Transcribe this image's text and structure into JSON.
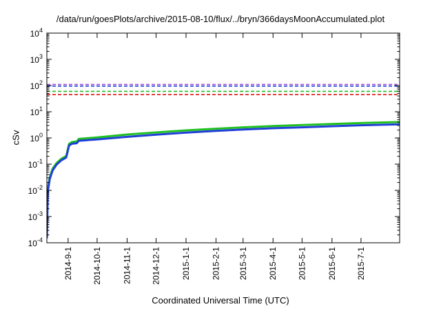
{
  "chart_data": {
    "type": "line",
    "title": "/data/run/goesPlots/archive/2015-08-10/flux/../bryn/366daysMoonAccumulated.plot",
    "xlabel": "Coordinated Universal Time (UTC)",
    "ylabel": "cSv",
    "y_scale": "log",
    "ylim": [
      0.0001,
      10000
    ],
    "xlim": [
      "2014-08-10",
      "2015-08-10"
    ],
    "grid": false,
    "y_ticks": [
      {
        "base": "10",
        "exp": "-4"
      },
      {
        "base": "10",
        "exp": "-3"
      },
      {
        "base": "10",
        "exp": "-2"
      },
      {
        "base": "10",
        "exp": "-1"
      },
      {
        "base": "10",
        "exp": "0"
      },
      {
        "base": "10",
        "exp": "1"
      },
      {
        "base": "10",
        "exp": "2"
      },
      {
        "base": "10",
        "exp": "3"
      },
      {
        "base": "10",
        "exp": "4"
      }
    ],
    "x_ticks": [
      {
        "label": "2014-9-1",
        "date": "2014-09-01"
      },
      {
        "label": "2014-10-1",
        "date": "2014-10-01"
      },
      {
        "label": "2014-11-1",
        "date": "2014-11-01"
      },
      {
        "label": "2014-12-1",
        "date": "2014-12-01"
      },
      {
        "label": "2015-1-1",
        "date": "2015-01-01"
      },
      {
        "label": "2015-2-1",
        "date": "2015-02-01"
      },
      {
        "label": "2015-3-1",
        "date": "2015-03-01"
      },
      {
        "label": "2015-4-1",
        "date": "2015-04-01"
      },
      {
        "label": "2015-5-1",
        "date": "2015-05-01"
      },
      {
        "label": "2015-6-1",
        "date": "2015-06-01"
      },
      {
        "label": "2015-7-1",
        "date": "2015-07-01"
      }
    ],
    "thresholds": [
      {
        "value": 110,
        "color": "#9a4fd6"
      },
      {
        "value": 95,
        "color": "#1f3fd6"
      },
      {
        "value": 60,
        "color": "#20c020"
      },
      {
        "value": 45,
        "color": "#e01010"
      }
    ],
    "series": [
      {
        "color": "#20c020",
        "width": 3,
        "points": [
          {
            "x": "2014-08-10",
            "y": 0.0002
          },
          {
            "x": "2014-08-11",
            "y": 0.011
          },
          {
            "x": "2014-08-13",
            "y": 0.032
          },
          {
            "x": "2014-08-16",
            "y": 0.068
          },
          {
            "x": "2014-08-20",
            "y": 0.11
          },
          {
            "x": "2014-08-25",
            "y": 0.16
          },
          {
            "x": "2014-08-30",
            "y": 0.205
          },
          {
            "x": "2014-09-02",
            "y": 0.6
          },
          {
            "x": "2014-09-05",
            "y": 0.7
          },
          {
            "x": "2014-09-10",
            "y": 0.74
          },
          {
            "x": "2014-09-12",
            "y": 0.92
          },
          {
            "x": "2014-10-01",
            "y": 1.05
          },
          {
            "x": "2014-11-01",
            "y": 1.35
          },
          {
            "x": "2014-12-01",
            "y": 1.62
          },
          {
            "x": "2015-01-01",
            "y": 1.95
          },
          {
            "x": "2015-02-01",
            "y": 2.25
          },
          {
            "x": "2015-03-01",
            "y": 2.55
          },
          {
            "x": "2015-04-01",
            "y": 2.85
          },
          {
            "x": "2015-05-01",
            "y": 3.1
          },
          {
            "x": "2015-06-01",
            "y": 3.4
          },
          {
            "x": "2015-07-01",
            "y": 3.7
          },
          {
            "x": "2015-08-10",
            "y": 4.05
          }
        ]
      },
      {
        "color": "#1f3fd6",
        "width": 3,
        "points": [
          {
            "x": "2014-08-10",
            "y": 0.00015
          },
          {
            "x": "2014-08-11",
            "y": 0.009
          },
          {
            "x": "2014-08-13",
            "y": 0.027
          },
          {
            "x": "2014-08-16",
            "y": 0.058
          },
          {
            "x": "2014-08-20",
            "y": 0.095
          },
          {
            "x": "2014-08-25",
            "y": 0.14
          },
          {
            "x": "2014-08-30",
            "y": 0.18
          },
          {
            "x": "2014-09-02",
            "y": 0.52
          },
          {
            "x": "2014-09-05",
            "y": 0.6
          },
          {
            "x": "2014-09-10",
            "y": 0.63
          },
          {
            "x": "2014-09-12",
            "y": 0.78
          },
          {
            "x": "2014-10-01",
            "y": 0.88
          },
          {
            "x": "2014-11-01",
            "y": 1.1
          },
          {
            "x": "2014-12-01",
            "y": 1.33
          },
          {
            "x": "2015-01-01",
            "y": 1.6
          },
          {
            "x": "2015-02-01",
            "y": 1.85
          },
          {
            "x": "2015-03-01",
            "y": 2.1
          },
          {
            "x": "2015-04-01",
            "y": 2.35
          },
          {
            "x": "2015-05-01",
            "y": 2.55
          },
          {
            "x": "2015-06-01",
            "y": 2.8
          },
          {
            "x": "2015-07-01",
            "y": 3.05
          },
          {
            "x": "2015-08-10",
            "y": 3.3
          }
        ]
      }
    ]
  }
}
